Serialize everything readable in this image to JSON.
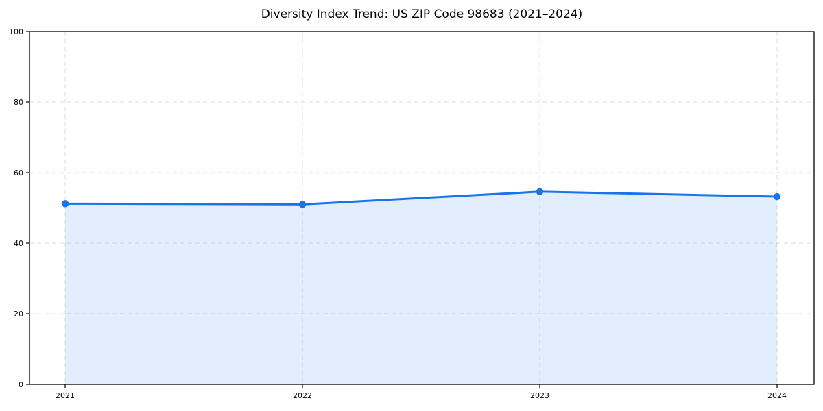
{
  "chart_data": {
    "type": "area",
    "title": "Diversity Index Trend: US ZIP Code 98683 (2021–2024)",
    "categories": [
      "2021",
      "2022",
      "2023",
      "2024"
    ],
    "series": [
      {
        "name": "Diversity Index",
        "values": [
          51.2,
          51.0,
          54.6,
          53.2
        ]
      }
    ],
    "xlabel": "",
    "ylabel": "",
    "ylim": [
      0,
      100
    ],
    "yticks": [
      0,
      20,
      40,
      60,
      80,
      100
    ],
    "grid": true,
    "grid_style": "dashed",
    "legend_position": "none",
    "colors": {
      "line": "#1a73e8",
      "marker": "#1a73e8",
      "fill": "rgba(26,115,232,0.12)",
      "grid": "#dddddd",
      "spine": "#000000",
      "title_text": "#000000",
      "tick_text": "#000000",
      "background": "#ffffff"
    }
  }
}
